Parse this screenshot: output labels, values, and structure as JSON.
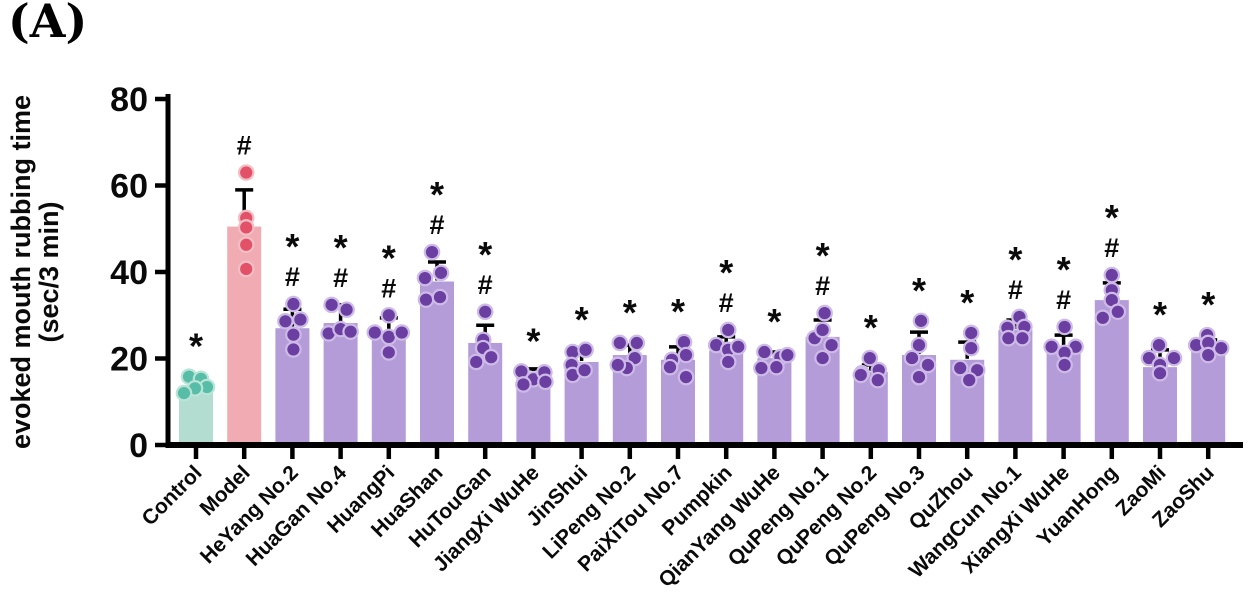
{
  "panel_label": "(A)",
  "figure": {
    "background": "#ffffff",
    "axis_color": "#000000"
  },
  "chart_data": {
    "type": "bar",
    "title": "",
    "ylabel_lines": [
      "evoked mouth rubbing time",
      "(sec/3 min)"
    ],
    "xlabel": "",
    "ylim": [
      0,
      80
    ],
    "yticks": [
      0,
      20,
      40,
      60,
      80
    ],
    "grid": false,
    "legend": null,
    "points_per_bar": 5,
    "significance_note_symbols": [
      "*",
      "#"
    ],
    "groups": {
      "control": {
        "bar": "#b3ddd1",
        "dot": "#58bda7",
        "dot_stroke": "#b9e4d8"
      },
      "model": {
        "bar": "#f0acb2",
        "dot": "#e25168",
        "dot_stroke": "#f3bfc5"
      },
      "treatment": {
        "bar": "#b49cd8",
        "dot": "#6b3ea1",
        "dot_stroke": "#cdbae6"
      }
    },
    "categories": [
      "Control",
      "Model",
      "HeYang No.2",
      "HuaGan No.4",
      "HuangPi",
      "HuaShan",
      "HuTouGan",
      "JiangXi WuHe",
      "JinShui",
      "LiPeng No.2",
      "PaiXiTou No.7",
      "Pumpkin",
      "QianYang WuHe",
      "QuPeng No.1",
      "QuPeng No.2",
      "QuPeng No.3",
      "QuZhou",
      "WangCun No.1",
      "XiangXi WuHe",
      "YuanHong",
      "ZaoMi",
      "ZaoShu"
    ],
    "bars": [
      {
        "label": "Control",
        "group": "control",
        "value": 13.5,
        "err_top": 15.3,
        "sig": "*",
        "dots": [
          {
            "dx": -7,
            "v": 15.8
          },
          {
            "dx": 5,
            "v": 15.3
          },
          {
            "dx": 11,
            "v": 13.4
          },
          {
            "dx": -1,
            "v": 13.1
          },
          {
            "dx": -12,
            "v": 12.0
          }
        ]
      },
      {
        "label": "Model",
        "group": "model",
        "value": 50.5,
        "err_top": 59.0,
        "sig": "#",
        "dots": [
          {
            "dx": 2,
            "v": 63.0
          },
          {
            "dx": 2,
            "v": 52.5
          },
          {
            "dx": 2,
            "v": 50.3
          },
          {
            "dx": 2,
            "v": 46.3
          },
          {
            "dx": 2,
            "v": 40.7
          }
        ]
      },
      {
        "label": "HeYang No.2",
        "group": "treatment",
        "value": 27.0,
        "err_top": 31.4,
        "sig": "*#",
        "dots": [
          {
            "dx": 1,
            "v": 32.6
          },
          {
            "dx": -7,
            "v": 28.6
          },
          {
            "dx": 8,
            "v": 29.0
          },
          {
            "dx": 1,
            "v": 25.5
          },
          {
            "dx": 1,
            "v": 22.1
          }
        ]
      },
      {
        "label": "HuaGan No.4",
        "group": "treatment",
        "value": 28.2,
        "err_top": 32.4,
        "sig": "*#",
        "dots": [
          {
            "dx": -9,
            "v": 32.4
          },
          {
            "dx": 6,
            "v": 31.3
          },
          {
            "dx": -12,
            "v": 25.8
          },
          {
            "dx": 0,
            "v": 26.8
          },
          {
            "dx": 10,
            "v": 26.2
          }
        ]
      },
      {
        "label": "HuangPi",
        "group": "treatment",
        "value": 26.0,
        "err_top": 29.4,
        "sig": "*#",
        "dots": [
          {
            "dx": 0,
            "v": 30.0
          },
          {
            "dx": -14,
            "v": 26.0
          },
          {
            "dx": 0,
            "v": 25.0
          },
          {
            "dx": 13,
            "v": 26.0
          },
          {
            "dx": 0,
            "v": 21.4
          }
        ]
      },
      {
        "label": "HuaShan",
        "group": "treatment",
        "value": 37.8,
        "err_top": 42.3,
        "sig": "*#",
        "dots": [
          {
            "dx": -5,
            "v": 44.6
          },
          {
            "dx": -12,
            "v": 38.6
          },
          {
            "dx": 4,
            "v": 39.8
          },
          {
            "dx": -11,
            "v": 33.6
          },
          {
            "dx": 3,
            "v": 34.2
          }
        ]
      },
      {
        "label": "HuTouGan",
        "group": "treatment",
        "value": 23.6,
        "err_top": 27.7,
        "sig": "*#",
        "dots": [
          {
            "dx": 0,
            "v": 30.8
          },
          {
            "dx": -2,
            "v": 24.3
          },
          {
            "dx": -2,
            "v": 22.4
          },
          {
            "dx": -9,
            "v": 19.2
          },
          {
            "dx": 6,
            "v": 20.3
          }
        ]
      },
      {
        "label": "JiangXi WuHe",
        "group": "treatment",
        "value": 16.9,
        "err_top": 17.6,
        "sig": "*",
        "dots": [
          {
            "dx": -12,
            "v": 17.0
          },
          {
            "dx": 0,
            "v": 15.2
          },
          {
            "dx": 11,
            "v": 16.8
          },
          {
            "dx": -10,
            "v": 14.0
          },
          {
            "dx": 12,
            "v": 14.6
          }
        ]
      },
      {
        "label": "JinShui",
        "group": "treatment",
        "value": 19.2,
        "err_top": 22.0,
        "sig": "*",
        "dots": [
          {
            "dx": -9,
            "v": 21.5
          },
          {
            "dx": 4,
            "v": 22.0
          },
          {
            "dx": -10,
            "v": 18.5
          },
          {
            "dx": -9,
            "v": 16.2
          },
          {
            "dx": 3,
            "v": 17.3
          }
        ]
      },
      {
        "label": "LiPeng No.2",
        "group": "treatment",
        "value": 20.8,
        "err_top": 23.1,
        "sig": "*",
        "dots": [
          {
            "dx": -10,
            "v": 23.6
          },
          {
            "dx": 7,
            "v": 23.6
          },
          {
            "dx": 5,
            "v": 20.1
          },
          {
            "dx": -3,
            "v": 17.8
          },
          {
            "dx": -12,
            "v": 18.5
          }
        ]
      },
      {
        "label": "PaiXiTou No.7",
        "group": "treatment",
        "value": 19.7,
        "err_top": 22.7,
        "sig": "*",
        "dots": [
          {
            "dx": 6,
            "v": 23.8
          },
          {
            "dx": 8,
            "v": 20.8
          },
          {
            "dx": -6,
            "v": 19.7
          },
          {
            "dx": 8,
            "v": 15.7
          },
          {
            "dx": -8,
            "v": 18.0
          }
        ]
      },
      {
        "label": "Pumpkin",
        "group": "treatment",
        "value": 21.8,
        "err_top": 25.0,
        "sig": "*#",
        "dots": [
          {
            "dx": -10,
            "v": 23.1
          },
          {
            "dx": 2,
            "v": 26.6
          },
          {
            "dx": 2,
            "v": 22.0
          },
          {
            "dx": 12,
            "v": 22.7
          },
          {
            "dx": 2,
            "v": 19.2
          }
        ]
      },
      {
        "label": "QianYang WuHe",
        "group": "treatment",
        "value": 20.1,
        "err_top": 21.5,
        "sig": "*",
        "dots": [
          {
            "dx": -10,
            "v": 21.5
          },
          {
            "dx": 6,
            "v": 20.3
          },
          {
            "dx": -13,
            "v": 17.8
          },
          {
            "dx": 2,
            "v": 18.0
          },
          {
            "dx": 13,
            "v": 20.8
          }
        ]
      },
      {
        "label": "QuPeng No.1",
        "group": "treatment",
        "value": 25.0,
        "err_top": 28.9,
        "sig": "*#",
        "dots": [
          {
            "dx": 2,
            "v": 30.5
          },
          {
            "dx": -8,
            "v": 24.7
          },
          {
            "dx": 9,
            "v": 23.1
          },
          {
            "dx": 0,
            "v": 26.6
          },
          {
            "dx": 0,
            "v": 20.1
          }
        ]
      },
      {
        "label": "QuPeng No.2",
        "group": "treatment",
        "value": 16.9,
        "err_top": 18.5,
        "sig": "*",
        "dots": [
          {
            "dx": -1,
            "v": 20.1
          },
          {
            "dx": -9,
            "v": 16.6
          },
          {
            "dx": 8,
            "v": 17.3
          },
          {
            "dx": 7,
            "v": 15.0
          },
          {
            "dx": -10,
            "v": 16.2
          }
        ]
      },
      {
        "label": "QuPeng No.3",
        "group": "treatment",
        "value": 20.8,
        "err_top": 26.1,
        "sig": "*",
        "dots": [
          {
            "dx": 2,
            "v": 28.7
          },
          {
            "dx": 0,
            "v": 23.1
          },
          {
            "dx": -7,
            "v": 20.1
          },
          {
            "dx": 9,
            "v": 18.5
          },
          {
            "dx": 0,
            "v": 15.7
          }
        ]
      },
      {
        "label": "QuZhou",
        "group": "treatment",
        "value": 19.7,
        "err_top": 23.8,
        "sig": "*",
        "dots": [
          {
            "dx": 4,
            "v": 25.9
          },
          {
            "dx": 4,
            "v": 22.4
          },
          {
            "dx": -7,
            "v": 17.8
          },
          {
            "dx": 10,
            "v": 17.3
          },
          {
            "dx": 2,
            "v": 15.0
          }
        ]
      },
      {
        "label": "WangCun No.1",
        "group": "treatment",
        "value": 26.6,
        "err_top": 28.9,
        "sig": "*#",
        "dots": [
          {
            "dx": 4,
            "v": 29.6
          },
          {
            "dx": -8,
            "v": 27.1
          },
          {
            "dx": 9,
            "v": 27.3
          },
          {
            "dx": -7,
            "v": 24.7
          },
          {
            "dx": 7,
            "v": 24.7
          }
        ]
      },
      {
        "label": "XiangXi WuHe",
        "group": "treatment",
        "value": 22.0,
        "err_top": 25.4,
        "sig": "*#",
        "dots": [
          {
            "dx": 1,
            "v": 27.3
          },
          {
            "dx": -12,
            "v": 22.7
          },
          {
            "dx": 12,
            "v": 22.7
          },
          {
            "dx": 1,
            "v": 21.3
          },
          {
            "dx": 1,
            "v": 18.5
          }
        ]
      },
      {
        "label": "YuanHong",
        "group": "treatment",
        "value": 33.5,
        "err_top": 37.5,
        "sig": "*#",
        "dots": [
          {
            "dx": 0,
            "v": 39.3
          },
          {
            "dx": 0,
            "v": 35.8
          },
          {
            "dx": 0,
            "v": 33.5
          },
          {
            "dx": -9,
            "v": 29.4
          },
          {
            "dx": 6,
            "v": 30.8
          }
        ]
      },
      {
        "label": "ZaoMi",
        "group": "treatment",
        "value": 18.0,
        "err_top": 22.0,
        "sig": "*",
        "dots": [
          {
            "dx": -1,
            "v": 23.1
          },
          {
            "dx": -11,
            "v": 20.1
          },
          {
            "dx": 14,
            "v": 20.1
          },
          {
            "dx": 0,
            "v": 18.5
          },
          {
            "dx": 0,
            "v": 16.6
          }
        ]
      },
      {
        "label": "ZaoShu",
        "group": "treatment",
        "value": 21.5,
        "err_top": 24.3,
        "sig": "*",
        "dots": [
          {
            "dx": -1,
            "v": 25.4
          },
          {
            "dx": -12,
            "v": 23.1
          },
          {
            "dx": 13,
            "v": 22.4
          },
          {
            "dx": 0,
            "v": 23.6
          },
          {
            "dx": 0,
            "v": 20.8
          }
        ]
      }
    ]
  }
}
